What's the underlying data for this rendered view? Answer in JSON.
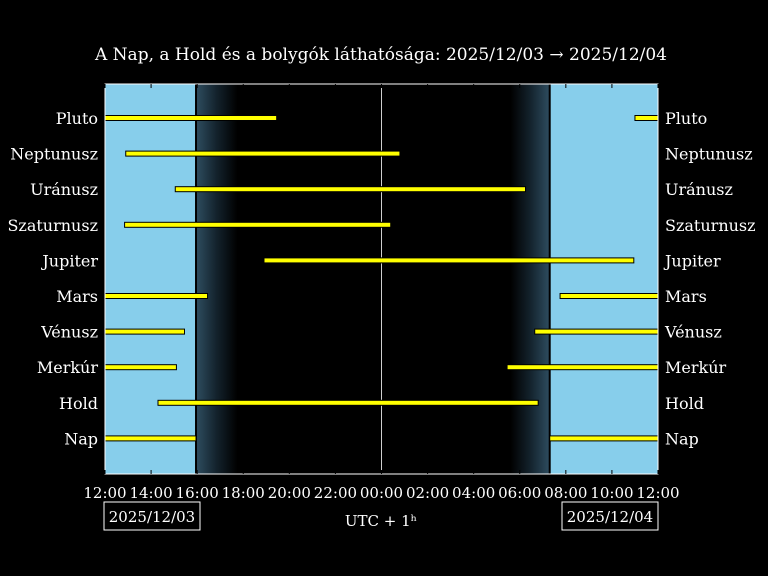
{
  "chart_data": {
    "type": "bar",
    "title": "A Nap, a Hold és a bolygók láthatósága: 2025/12/03 → 2025/12/04",
    "xlabel": "UTC + 1ʰ",
    "date_left": "2025/12/03",
    "date_right": "2025/12/04",
    "x_ticks": [
      "12:00",
      "14:00",
      "16:00",
      "18:00",
      "20:00",
      "22:00",
      "00:00",
      "02:00",
      "04:00",
      "06:00",
      "08:00",
      "10:00",
      "12:00"
    ],
    "x_range_hours": [
      12,
      36
    ],
    "day_spans": [
      [
        12,
        15.95
      ],
      [
        31.3,
        36
      ]
    ],
    "twilight": {
      "evening": [
        15.95,
        17.75
      ],
      "morning": [
        29.6,
        31.3
      ]
    },
    "midnight": 24,
    "categories": [
      "Pluto",
      "Neptunusz",
      "Uránusz",
      "Szaturnusz",
      "Jupiter",
      "Mars",
      "Vénusz",
      "Merkúr",
      "Hold",
      "Nap"
    ],
    "series": [
      {
        "name": "Pluto",
        "spans": [
          [
            12,
            19.45
          ],
          [
            35.0,
            36
          ]
        ]
      },
      {
        "name": "Neptunusz",
        "spans": [
          [
            12.9,
            24.8
          ]
        ]
      },
      {
        "name": "Uránusz",
        "spans": [
          [
            15.05,
            30.25
          ]
        ]
      },
      {
        "name": "Szaturnusz",
        "spans": [
          [
            12.85,
            24.4
          ]
        ]
      },
      {
        "name": "Jupiter",
        "spans": [
          [
            18.9,
            34.95
          ]
        ]
      },
      {
        "name": "Mars",
        "spans": [
          [
            12,
            16.45
          ],
          [
            31.75,
            36
          ]
        ]
      },
      {
        "name": "Vénusz",
        "spans": [
          [
            12,
            15.45
          ],
          [
            30.65,
            36
          ]
        ]
      },
      {
        "name": "Merkúr",
        "spans": [
          [
            12,
            15.1
          ],
          [
            29.45,
            36
          ]
        ]
      },
      {
        "name": "Hold",
        "spans": [
          [
            14.3,
            30.8
          ]
        ]
      },
      {
        "name": "Nap",
        "spans": [
          [
            12,
            15.95
          ],
          [
            31.3,
            36
          ]
        ]
      }
    ],
    "colors": {
      "sky": "#87ceeb",
      "bar": "#ffff00",
      "bar_edge": "#000000",
      "night": "#000000",
      "axis": "#ffffff"
    }
  }
}
